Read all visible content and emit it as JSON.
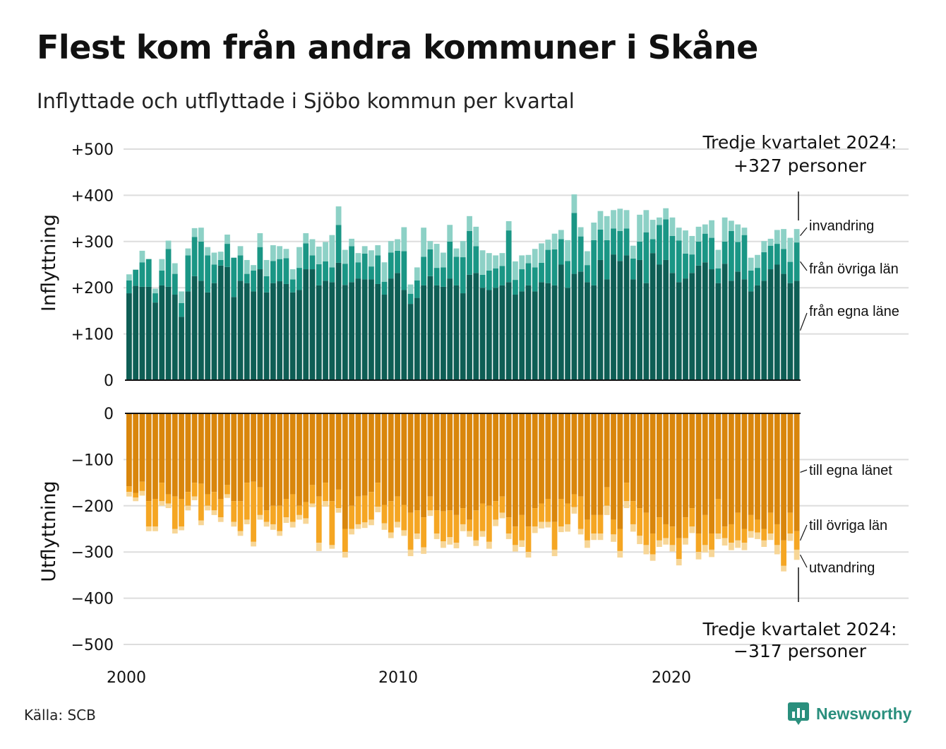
{
  "title": "Flest kom från andra kommuner i Skåne",
  "subtitle": "Inflyttade och utflyttade i Sjöbo kommun per kvartal",
  "source": "Källa: SCB",
  "brand": {
    "name": "Newsworthy",
    "icon": "newsworthy-logo-icon"
  },
  "colors": {
    "in_own": "#0e5e55",
    "in_other": "#1a9685",
    "in_immigration": "#8dd1c6",
    "out_own": "#d9860c",
    "out_other": "#f5a623",
    "out_emigration": "#f7d697",
    "grid": "#dddddd",
    "axis": "#111111"
  },
  "chart_data": [
    {
      "type": "bar",
      "stacked": true,
      "panel": "inflyttning",
      "ylabel": "Inflyttning",
      "ylim": [
        0,
        500
      ],
      "yticks": [
        0,
        100,
        200,
        300,
        400,
        500
      ],
      "ytick_labels": [
        "0",
        "+100",
        "+200",
        "+300",
        "+400",
        "+500"
      ],
      "x_start": "2000 Q1",
      "x_end": "2024 Q3",
      "xticks": [
        2000,
        2010,
        2020
      ],
      "xtick_labels": [
        "2000",
        "2010",
        "2020"
      ],
      "annotation": {
        "line1": "Tredje kvartalet 2024:",
        "line2": "+327 personer"
      },
      "series": [
        {
          "name": "från egna läne",
          "values": [
            188,
            204,
            202,
            202,
            168,
            205,
            202,
            185,
            137,
            192,
            225,
            215,
            190,
            210,
            248,
            245,
            180,
            215,
            210,
            192,
            240,
            190,
            210,
            214,
            208,
            190,
            195,
            240,
            240,
            205,
            215,
            212,
            254,
            206,
            212,
            220,
            218,
            218,
            208,
            185,
            220,
            232,
            195,
            165,
            178,
            205,
            225,
            205,
            202,
            220,
            205,
            188,
            228,
            232,
            200,
            195,
            200,
            205,
            212,
            185,
            192,
            205,
            192,
            212,
            210,
            205,
            250,
            200,
            230,
            235,
            212,
            205,
            260,
            218,
            272,
            258,
            270,
            218,
            260,
            210,
            275,
            250,
            260,
            232,
            212,
            220,
            232,
            248,
            255,
            240,
            210,
            252,
            215,
            235,
            218,
            192,
            205,
            215,
            240,
            250,
            230,
            210,
            215
          ]
        },
        {
          "name": "från övriga län",
          "values": [
            28,
            35,
            53,
            60,
            20,
            32,
            82,
            45,
            30,
            78,
            85,
            85,
            80,
            40,
            12,
            50,
            85,
            55,
            20,
            45,
            48,
            35,
            48,
            48,
            56,
            28,
            48,
            56,
            30,
            46,
            42,
            32,
            82,
            46,
            78,
            35,
            56,
            28,
            62,
            28,
            56,
            48,
            84,
            22,
            38,
            62,
            58,
            38,
            42,
            80,
            62,
            78,
            95,
            58,
            28,
            42,
            42,
            42,
            112,
            32,
            48,
            48,
            52,
            42,
            72,
            78,
            55,
            58,
            132,
            76,
            37,
            98,
            66,
            85,
            56,
            65,
            58,
            45,
            40,
            110,
            30,
            86,
            88,
            80,
            90,
            54,
            40,
            52,
            62,
            68,
            32,
            48,
            108,
            64,
            96,
            45,
            38,
            62,
            51,
            45,
            54,
            46,
            83
          ]
        },
        {
          "name": "invandring",
          "values": [
            13,
            0,
            25,
            0,
            10,
            25,
            18,
            23,
            25,
            15,
            19,
            30,
            18,
            26,
            18,
            20,
            0,
            20,
            30,
            12,
            30,
            35,
            34,
            28,
            20,
            22,
            45,
            22,
            35,
            38,
            42,
            70,
            40,
            30,
            16,
            20,
            16,
            35,
            22,
            42,
            25,
            25,
            52,
            20,
            28,
            63,
            18,
            52,
            32,
            36,
            18,
            35,
            32,
            42,
            53,
            38,
            28,
            28,
            20,
            40,
            30,
            18,
            40,
            42,
            22,
            34,
            20,
            45,
            40,
            20,
            30,
            38,
            40,
            52,
            40,
            48,
            40,
            28,
            58,
            48,
            42,
            16,
            24,
            40,
            28,
            50,
            40,
            32,
            20,
            38,
            40,
            52,
            22,
            38,
            16,
            28,
            28,
            24,
            15,
            30,
            43,
            52,
            29
          ]
        }
      ]
    },
    {
      "type": "bar",
      "stacked": true,
      "panel": "utflyttning",
      "ylabel": "Utflyttning",
      "ylim": [
        -500,
        0
      ],
      "yticks": [
        0,
        -100,
        -200,
        -300,
        -400,
        -500
      ],
      "ytick_labels": [
        "0",
        "−100",
        "−200",
        "−300",
        "−400",
        "−500"
      ],
      "x_start": "2000 Q1",
      "x_end": "2024 Q3",
      "xticks": [
        2000,
        2010,
        2020
      ],
      "xtick_labels": [
        "2000",
        "2010",
        "2020"
      ],
      "annotation": {
        "line1": "Tredje kvartalet 2024:",
        "line2": "−317 personer"
      },
      "series": [
        {
          "name": "till egna länet",
          "values": [
            -158,
            -172,
            -148,
            -190,
            -185,
            -150,
            -175,
            -180,
            -185,
            -170,
            -150,
            -152,
            -175,
            -170,
            -185,
            -155,
            -190,
            -190,
            -150,
            -148,
            -160,
            -210,
            -200,
            -200,
            -185,
            -175,
            -200,
            -192,
            -155,
            -180,
            -150,
            -190,
            -165,
            -250,
            -200,
            -180,
            -178,
            -170,
            -150,
            -198,
            -190,
            -180,
            -198,
            -215,
            -210,
            -225,
            -180,
            -210,
            -212,
            -210,
            -220,
            -205,
            -230,
            -210,
            -195,
            -200,
            -190,
            -180,
            -225,
            -245,
            -220,
            -245,
            -205,
            -195,
            -185,
            -235,
            -185,
            -195,
            -175,
            -180,
            -230,
            -220,
            -220,
            -160,
            -230,
            -250,
            -150,
            -190,
            -205,
            -215,
            -260,
            -225,
            -240,
            -245,
            -270,
            -225,
            -205,
            -260,
            -220,
            -260,
            -185,
            -245,
            -240,
            -215,
            -250,
            -220,
            -230,
            -250,
            -215,
            -240,
            -275,
            -215,
            -255
          ]
        },
        {
          "name": "till övriga län",
          "values": [
            -12,
            -10,
            -20,
            -55,
            -60,
            -40,
            -20,
            -70,
            -60,
            -30,
            -30,
            -80,
            -25,
            -40,
            -40,
            -20,
            -45,
            -65,
            -80,
            -130,
            -60,
            -25,
            -40,
            -55,
            -40,
            -60,
            -20,
            -35,
            -40,
            -100,
            -40,
            -95,
            -40,
            -50,
            -50,
            -60,
            -58,
            -60,
            -52,
            -40,
            -68,
            -55,
            -55,
            -80,
            -50,
            -65,
            -30,
            -50,
            -65,
            -58,
            -60,
            -35,
            -25,
            -65,
            -60,
            -78,
            -40,
            -35,
            -35,
            -40,
            -55,
            -55,
            -40,
            -40,
            -50,
            -60,
            -60,
            -45,
            -28,
            -70,
            -45,
            -40,
            -40,
            -40,
            -32,
            -48,
            -40,
            -50,
            -60,
            -70,
            -45,
            -50,
            -30,
            -40,
            -45,
            -45,
            -40,
            -40,
            -65,
            -35,
            -75,
            -25,
            -40,
            -60,
            -30,
            -35,
            -28,
            -25,
            -45,
            -45,
            -55,
            -45,
            -40
          ]
        },
        {
          "name": "utvandring",
          "values": [
            -10,
            -8,
            -10,
            -10,
            -10,
            -10,
            -10,
            -10,
            -8,
            -10,
            -8,
            -10,
            -10,
            -10,
            -10,
            -8,
            -10,
            -10,
            -10,
            -10,
            -10,
            -10,
            -12,
            -10,
            -12,
            -12,
            -10,
            -12,
            -8,
            -18,
            -12,
            -8,
            -10,
            -12,
            -12,
            -10,
            -12,
            -12,
            -12,
            -14,
            -12,
            -12,
            -12,
            -14,
            -12,
            -14,
            -12,
            -12,
            -14,
            -16,
            -12,
            -15,
            -12,
            -12,
            -12,
            -15,
            -14,
            -12,
            -12,
            -14,
            -14,
            -12,
            -14,
            -14,
            -12,
            -14,
            -12,
            -16,
            -14,
            -12,
            -16,
            -14,
            -14,
            -20,
            -16,
            -14,
            -15,
            -16,
            -18,
            -20,
            -14,
            -14,
            -14,
            -14,
            -14,
            -14,
            -14,
            -16,
            -16,
            -16,
            -12,
            -16,
            -16,
            -16,
            -16,
            -14,
            -14,
            -14,
            -14,
            -20,
            -12,
            -16,
            -22
          ]
        }
      ]
    }
  ]
}
